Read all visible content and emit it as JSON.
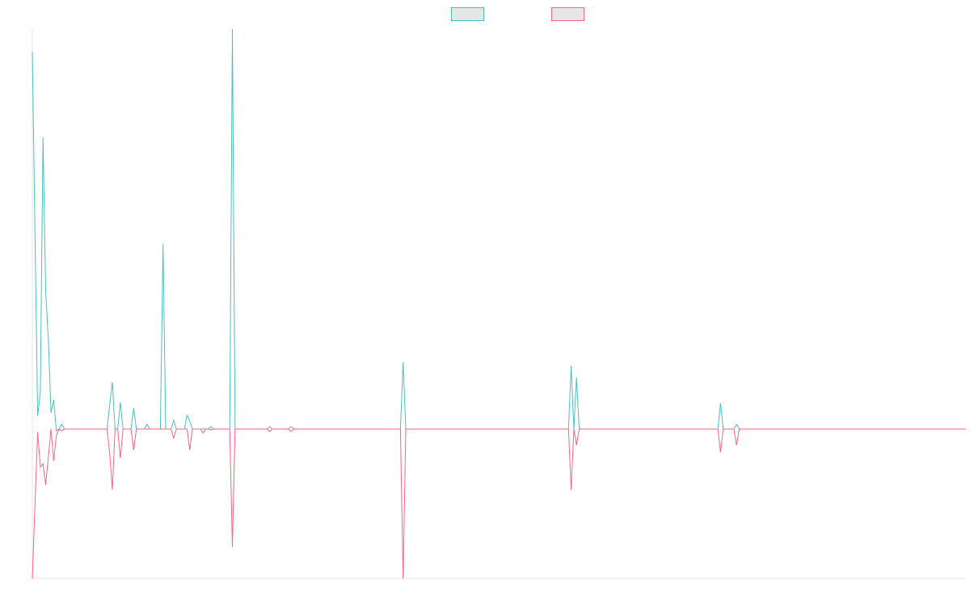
{
  "chart_data": {
    "type": "line",
    "legend": "top",
    "ylim": [
      -185,
      495
    ],
    "series": [
      {
        "color": "#4bc0c0",
        "values": [
          467,
          241,
          16,
          46,
          361,
          171,
          111,
          20,
          36,
          -2,
          0,
          6,
          0,
          0,
          0,
          0,
          0,
          0,
          0,
          0,
          0,
          0,
          0,
          0,
          0,
          0,
          0,
          0,
          0,
          30,
          58,
          0,
          0,
          33,
          0,
          0,
          0,
          0,
          26,
          0,
          0,
          0,
          0,
          6,
          0,
          0,
          0,
          0,
          0,
          229,
          0,
          0,
          0,
          11,
          0,
          0,
          0,
          0,
          17,
          10,
          0,
          0,
          0,
          0,
          0,
          0,
          0,
          3,
          0,
          0,
          0,
          0,
          0,
          0,
          0,
          495,
          0,
          0,
          0,
          0,
          0,
          0,
          0,
          0,
          0,
          0,
          0,
          0,
          0,
          3,
          0,
          0,
          0,
          0,
          0,
          0,
          0,
          3,
          0,
          0,
          0,
          0,
          0,
          0,
          0,
          0,
          0,
          0,
          0,
          0,
          0,
          0,
          0,
          0,
          0,
          0,
          0,
          0,
          0,
          0,
          0,
          0,
          0,
          0,
          0,
          0,
          0,
          0,
          0,
          0,
          0,
          0,
          0,
          0,
          0,
          0,
          0,
          0,
          0,
          83,
          0,
          0,
          0,
          0,
          0,
          0,
          0,
          0,
          0,
          0,
          0,
          0,
          0,
          0,
          0,
          0,
          0,
          0,
          0,
          0,
          0,
          0,
          0,
          0,
          0,
          0,
          0,
          0,
          0,
          0,
          0,
          0,
          0,
          0,
          0,
          0,
          0,
          0,
          0,
          0,
          0,
          0,
          0,
          0,
          0,
          0,
          0,
          0,
          0,
          0,
          0,
          0,
          0,
          0,
          0,
          0,
          0,
          0,
          0,
          0,
          0,
          0,
          78,
          0,
          64,
          0,
          0,
          0,
          0,
          0,
          0,
          0,
          0,
          0,
          0,
          0,
          0,
          0,
          0,
          0,
          0,
          0,
          0,
          0,
          0,
          0,
          0,
          0,
          0,
          0,
          0,
          0,
          0,
          0,
          0,
          0,
          0,
          0,
          0,
          0,
          0,
          0,
          0,
          0,
          0,
          0,
          0,
          0,
          0,
          0,
          0,
          0,
          0,
          0,
          0,
          0,
          0,
          0,
          32,
          0,
          0,
          0,
          0,
          0,
          6,
          0,
          0,
          0,
          0,
          0,
          0,
          0,
          0,
          0,
          0,
          0,
          0,
          0,
          0,
          0,
          0,
          0,
          0,
          0,
          0,
          0,
          0,
          0,
          0,
          0,
          0,
          0,
          0,
          0,
          0,
          0,
          0,
          0,
          0,
          0,
          0,
          0,
          0,
          0,
          0,
          0,
          0,
          0,
          0,
          0,
          0,
          0,
          0,
          0,
          0,
          0,
          0,
          0,
          0,
          0,
          0,
          0,
          0,
          0,
          0,
          0,
          0,
          0,
          0,
          0,
          0,
          0,
          0,
          0,
          0,
          0,
          0,
          0,
          0,
          0,
          0,
          0,
          0,
          0,
          0,
          0,
          0,
          0,
          0,
          0,
          0
        ]
      },
      {
        "color": "#ff6384",
        "values": [
          -185,
          -93,
          -4,
          -47,
          -43,
          -69,
          -35,
          0,
          -39,
          -8,
          0,
          -2,
          0,
          0,
          0,
          0,
          0,
          0,
          0,
          0,
          0,
          0,
          0,
          0,
          0,
          0,
          0,
          0,
          0,
          -30,
          -75,
          0,
          0,
          -36,
          0,
          0,
          0,
          0,
          -26,
          0,
          0,
          0,
          0,
          0,
          0,
          0,
          0,
          0,
          0,
          0,
          0,
          0,
          0,
          -11,
          0,
          0,
          0,
          0,
          0,
          -26,
          0,
          0,
          0,
          0,
          -5,
          0,
          0,
          -1,
          0,
          0,
          0,
          0,
          0,
          0,
          0,
          -146,
          0,
          0,
          0,
          0,
          0,
          0,
          0,
          0,
          0,
          0,
          0,
          0,
          0,
          -3,
          0,
          0,
          0,
          0,
          0,
          0,
          0,
          -3,
          0,
          0,
          0,
          0,
          0,
          0,
          0,
          0,
          0,
          0,
          0,
          0,
          0,
          0,
          0,
          0,
          0,
          0,
          0,
          0,
          0,
          0,
          0,
          0,
          0,
          0,
          0,
          0,
          0,
          0,
          0,
          0,
          0,
          0,
          0,
          0,
          0,
          0,
          0,
          0,
          0,
          -185,
          0,
          0,
          0,
          0,
          0,
          0,
          0,
          0,
          0,
          0,
          0,
          0,
          0,
          0,
          0,
          0,
          0,
          0,
          0,
          0,
          0,
          0,
          0,
          0,
          0,
          0,
          0,
          0,
          0,
          0,
          0,
          0,
          0,
          0,
          0,
          0,
          0,
          0,
          0,
          0,
          0,
          0,
          0,
          0,
          0,
          0,
          0,
          0,
          0,
          0,
          0,
          0,
          0,
          0,
          0,
          0,
          0,
          0,
          0,
          0,
          0,
          0,
          -75,
          0,
          -20,
          0,
          0,
          0,
          0,
          0,
          0,
          0,
          0,
          0,
          0,
          0,
          0,
          0,
          0,
          0,
          0,
          0,
          0,
          0,
          0,
          0,
          0,
          0,
          0,
          0,
          0,
          0,
          0,
          0,
          0,
          0,
          0,
          0,
          0,
          0,
          0,
          0,
          0,
          0,
          0,
          0,
          0,
          0,
          0,
          0,
          0,
          0,
          0,
          0,
          0,
          0,
          0,
          0,
          -29,
          0,
          0,
          0,
          0,
          0,
          -20,
          0,
          0,
          0,
          0,
          0,
          0,
          0,
          0,
          0,
          0,
          0,
          0,
          0,
          0,
          0,
          0,
          0,
          0,
          0,
          0,
          0,
          0,
          0,
          0,
          0,
          0,
          0,
          0,
          0,
          0,
          0,
          0,
          0,
          0,
          0,
          0,
          0,
          0,
          0,
          0,
          0,
          0,
          0,
          0,
          0,
          0,
          0,
          0,
          0,
          0,
          0,
          0,
          0,
          0,
          0,
          0,
          0,
          0,
          0,
          0,
          0,
          0,
          0,
          0,
          0,
          0,
          0,
          0,
          0,
          0,
          0,
          0,
          0,
          0,
          0,
          0,
          0,
          0,
          0,
          0,
          0,
          0,
          0,
          0,
          0,
          0
        ]
      }
    ]
  }
}
